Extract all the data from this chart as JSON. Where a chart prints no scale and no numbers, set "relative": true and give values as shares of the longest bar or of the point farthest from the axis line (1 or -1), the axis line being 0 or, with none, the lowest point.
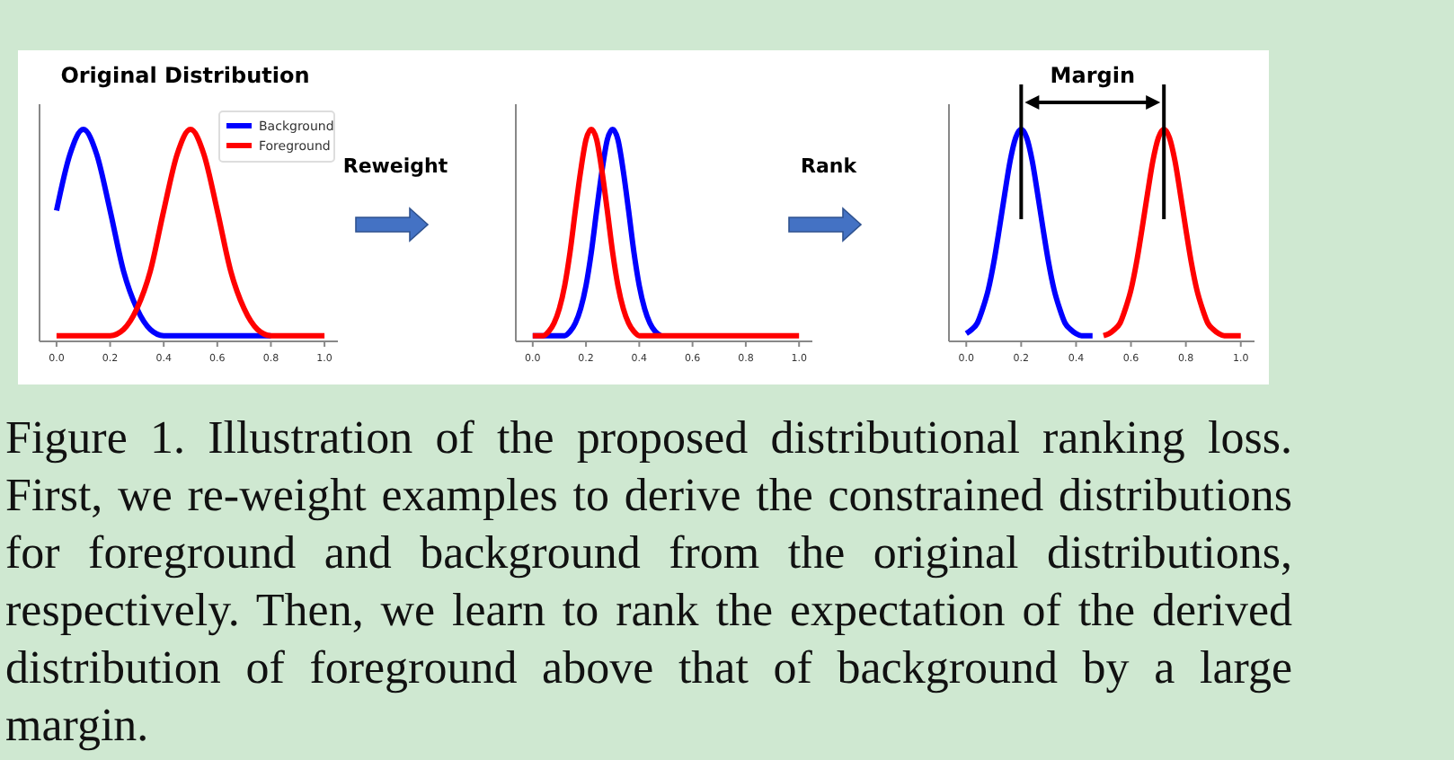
{
  "chart_data": [
    {
      "type": "line",
      "title": "Original Distribution",
      "relative": true,
      "xlim": [
        -0.05,
        1.05
      ],
      "xticks": [
        {
          "value": 0,
          "label": "0.0"
        },
        {
          "value": 0.2,
          "label": "0.2"
        },
        {
          "value": 0.4,
          "label": "0.4"
        },
        {
          "value": 0.6,
          "label": "0.6"
        },
        {
          "value": 0.8,
          "label": "0.8"
        },
        {
          "value": 1,
          "label": "1.0"
        }
      ],
      "tick_labels": "x",
      "legend": "top right",
      "x": [
        0,
        0.05,
        0.1,
        0.15,
        0.2,
        0.25,
        0.3,
        0.35,
        0.4,
        0.45,
        0.5,
        0.55,
        0.6,
        0.65,
        0.7,
        0.75,
        0.8,
        0.85,
        0.9,
        0.95,
        1.0
      ],
      "series": [
        {
          "name": "Background",
          "color": "#0000ff",
          "values": [
            0.61,
            0.88,
            1,
            0.88,
            0.61,
            0.32,
            0.14,
            0.04,
            0.01,
            0.01,
            0.01,
            0.01,
            0.01,
            0.01,
            0.01,
            0.01,
            0.01,
            null,
            null,
            null,
            null
          ]
        },
        {
          "name": "Foreground",
          "color": "#ff0000",
          "values": [
            0.01,
            0.01,
            0.01,
            0.01,
            0.01,
            0.04,
            0.14,
            0.32,
            0.61,
            0.88,
            1,
            0.88,
            0.61,
            0.32,
            0.14,
            0.04,
            0.01,
            0.01,
            0.01,
            0.01,
            0.01
          ]
        }
      ]
    },
    {
      "type": "line",
      "relative": true,
      "annotations": [
        "Reweight"
      ],
      "xlim": [
        -0.05,
        1.05
      ],
      "xticks": [
        {
          "value": 0,
          "label": "0.0"
        },
        {
          "value": 0.2,
          "label": "0.2"
        },
        {
          "value": 0.4,
          "label": "0.4"
        },
        {
          "value": 0.6,
          "label": "0.6"
        },
        {
          "value": 0.8,
          "label": "0.8"
        },
        {
          "value": 1,
          "label": "1.0"
        }
      ],
      "tick_labels": "x",
      "series": [
        {
          "color": "#0000ff",
          "x": [
            0,
            0.12,
            0.14,
            0.16,
            0.18,
            0.2,
            0.22,
            0.24,
            0.26,
            0.28,
            0.3,
            0.32,
            0.34,
            0.36,
            0.38,
            0.4,
            0.42,
            0.44,
            0.46,
            0.48
          ],
          "values": [
            0.01,
            0.01,
            0.03,
            0.07,
            0.14,
            0.25,
            0.41,
            0.61,
            0.8,
            0.95,
            1,
            0.95,
            0.8,
            0.61,
            0.41,
            0.25,
            0.14,
            0.07,
            0.03,
            0.01
          ]
        },
        {
          "color": "#ff0000",
          "x": [
            0,
            0.02,
            0.04,
            0.06,
            0.08,
            0.1,
            0.12,
            0.14,
            0.16,
            0.18,
            0.2,
            0.22,
            0.24,
            0.26,
            0.28,
            0.3,
            0.32,
            0.34,
            0.36,
            0.38,
            0.4,
            1.0
          ],
          "values": [
            0.01,
            0.01,
            0.01,
            0.03,
            0.07,
            0.14,
            0.25,
            0.41,
            0.61,
            0.8,
            0.95,
            1,
            0.95,
            0.8,
            0.61,
            0.41,
            0.25,
            0.14,
            0.07,
            0.03,
            0.01,
            0.01
          ]
        }
      ]
    },
    {
      "type": "line",
      "title": "Margin",
      "relative": true,
      "annotations": [
        "Rank"
      ],
      "xlim": [
        -0.05,
        1.05
      ],
      "xticks": [
        {
          "value": 0,
          "label": "0.0"
        },
        {
          "value": 0.2,
          "label": "0.2"
        },
        {
          "value": 0.4,
          "label": "0.4"
        },
        {
          "value": 0.6,
          "label": "0.6"
        },
        {
          "value": 0.8,
          "label": "0.8"
        },
        {
          "value": 1,
          "label": "1.0"
        }
      ],
      "tick_labels": "x",
      "ref_lines": [
        {
          "axis": "x",
          "value": 0.2,
          "color": "#000000"
        },
        {
          "axis": "x",
          "value": 0.72,
          "color": "#000000"
        }
      ],
      "series": [
        {
          "color": "#0000ff",
          "x": [
            0,
            0.02,
            0.04,
            0.06,
            0.08,
            0.1,
            0.12,
            0.14,
            0.16,
            0.18,
            0.2,
            0.22,
            0.24,
            0.26,
            0.28,
            0.3,
            0.32,
            0.34,
            0.36,
            0.38,
            0.4,
            0.42,
            0.46
          ],
          "values": [
            0.02,
            0.04,
            0.07,
            0.14,
            0.23,
            0.36,
            0.52,
            0.69,
            0.85,
            0.96,
            1,
            0.96,
            0.85,
            0.69,
            0.52,
            0.36,
            0.23,
            0.14,
            0.07,
            0.04,
            0.02,
            0.01,
            0.01
          ]
        },
        {
          "color": "#ff0000",
          "x": [
            0.5,
            0.52,
            0.54,
            0.56,
            0.58,
            0.6,
            0.62,
            0.64,
            0.66,
            0.68,
            0.7,
            0.72,
            0.74,
            0.76,
            0.78,
            0.8,
            0.82,
            0.84,
            0.86,
            0.88,
            0.9,
            0.92,
            0.94,
            1.0
          ],
          "values": [
            0.01,
            0.02,
            0.04,
            0.07,
            0.14,
            0.23,
            0.36,
            0.52,
            0.69,
            0.85,
            0.96,
            1,
            0.96,
            0.85,
            0.69,
            0.52,
            0.36,
            0.23,
            0.14,
            0.07,
            0.04,
            0.02,
            0.01,
            0.01
          ]
        }
      ]
    },
    {
      "type": "other",
      "annotations": [
        "Figure 1. Illustration of the proposed distributional ranking loss. First, we re-weight examples to derive the constrained distributions for foreground and background from the original distributions, respectively. Then, we learn to rank the expectation of the derived distribution of foreground above that of background by a large margin."
      ]
    }
  ]
}
